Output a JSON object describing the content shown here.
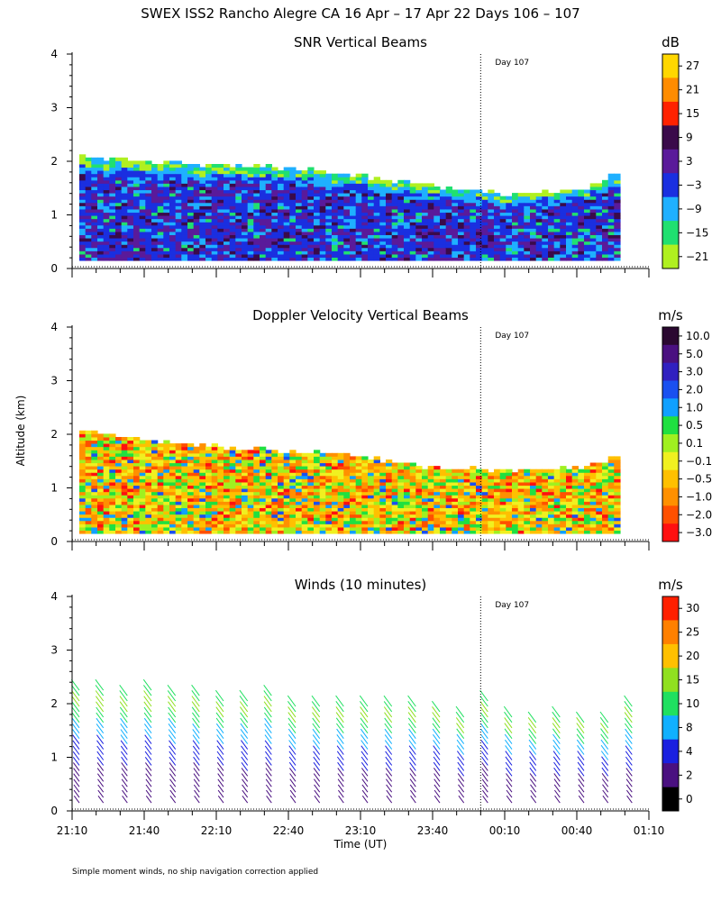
{
  "main_title": "SWEX ISS2 Rancho Alegre CA  16 Apr – 17 Apr 22 Days 106 – 107",
  "ylabel": "Altitude (km)",
  "xlabel": "Time (UT)",
  "footnote": "Simple moment winds, no ship navigation correction applied",
  "day_marker": "Day 107",
  "x_ticks": [
    "21:10",
    "21:40",
    "22:10",
    "22:40",
    "23:10",
    "23:40",
    "00:10",
    "00:40",
    "01:10"
  ],
  "y_ticks": [
    "0",
    "1",
    "2",
    "3",
    "4"
  ],
  "panels": [
    {
      "title": "SNR Vertical Beams",
      "unit": "dB",
      "colorbar": {
        "labels": [
          "27",
          "21",
          "15",
          "9",
          "3",
          "−3",
          "−9",
          "−15",
          "−21"
        ],
        "colors": [
          "#ffd700",
          "#ff8c00",
          "#ff2200",
          "#3a0a4a",
          "#5a1a9a",
          "#1a2fe0",
          "#1fb0ff",
          "#20e070",
          "#b0f020"
        ]
      }
    },
    {
      "title": "Doppler Velocity Vertical Beams",
      "unit": "m/s",
      "colorbar": {
        "labels": [
          "10.0",
          "5.0",
          "3.0",
          "2.0",
          "1.0",
          "0.5",
          "0.1",
          "−0.1",
          "−0.5",
          "−1.0",
          "−2.0",
          "−3.0"
        ],
        "colors": [
          "#2a0830",
          "#4a1080",
          "#3020c0",
          "#1a50f0",
          "#10a0ff",
          "#20e040",
          "#a0f020",
          "#f0f020",
          "#ffc000",
          "#ff9000",
          "#ff5000",
          "#ff1010"
        ]
      }
    },
    {
      "title": "Winds (10 minutes)",
      "unit": "m/s",
      "colorbar": {
        "labels": [
          "30",
          "25",
          "20",
          "15",
          "10",
          "8",
          "4",
          "2",
          "0"
        ],
        "colors": [
          "#ff2000",
          "#ff8000",
          "#ffc000",
          "#90e020",
          "#20e060",
          "#10b0ff",
          "#1a20e0",
          "#4a1080",
          "#000000"
        ]
      }
    }
  ],
  "chart_data": [
    {
      "type": "heatmap",
      "title": "SNR Vertical Beams",
      "ylabel": "Altitude (km)",
      "xlabel": "Time (UT)",
      "ylim": [
        0,
        4
      ],
      "x_range": [
        "21:10",
        "01:10"
      ],
      "colorbar_unit": "dB",
      "colorbar_levels": [
        -21,
        -15,
        -9,
        -3,
        3,
        9,
        15,
        21,
        27
      ],
      "echo_top_km": [
        {
          "time": "21:10",
          "value": 2.1
        },
        {
          "time": "21:40",
          "value": 1.95
        },
        {
          "time": "22:10",
          "value": 1.9
        },
        {
          "time": "22:40",
          "value": 1.85
        },
        {
          "time": "23:10",
          "value": 1.7
        },
        {
          "time": "23:40",
          "value": 1.5
        },
        {
          "time": "00:10",
          "value": 1.35
        },
        {
          "time": "00:40",
          "value": 1.45
        },
        {
          "time": "01:00",
          "value": 1.8
        }
      ],
      "echo_base_km": 0.15,
      "day_marker": {
        "time": "00:00",
        "label": "Day 107"
      }
    },
    {
      "type": "heatmap",
      "title": "Doppler Velocity Vertical Beams",
      "ylabel": "Altitude (km)",
      "xlabel": "Time (UT)",
      "ylim": [
        0,
        4
      ],
      "x_range": [
        "21:10",
        "01:10"
      ],
      "colorbar_unit": "m/s",
      "colorbar_levels": [
        -3.0,
        -2.0,
        -1.0,
        -0.5,
        -0.1,
        0.1,
        0.5,
        1.0,
        2.0,
        3.0,
        5.0,
        10.0
      ],
      "echo_top_km": [
        {
          "time": "21:10",
          "value": 2.1
        },
        {
          "time": "21:40",
          "value": 1.85
        },
        {
          "time": "22:10",
          "value": 1.75
        },
        {
          "time": "22:40",
          "value": 1.65
        },
        {
          "time": "23:10",
          "value": 1.55
        },
        {
          "time": "23:40",
          "value": 1.35
        },
        {
          "time": "00:10",
          "value": 1.3
        },
        {
          "time": "00:40",
          "value": 1.35
        },
        {
          "time": "01:00",
          "value": 1.6
        }
      ],
      "echo_base_km": 0.15,
      "day_marker": {
        "time": "00:00",
        "label": "Day 107"
      }
    },
    {
      "type": "scatter",
      "title": "Winds (10 minutes)",
      "ylabel": "Altitude (km)",
      "xlabel": "Time (UT)",
      "ylim": [
        0,
        4
      ],
      "x_range": [
        "21:10",
        "01:10"
      ],
      "colorbar_unit": "m/s",
      "colorbar_levels": [
        0,
        2,
        4,
        8,
        10,
        15,
        20,
        25,
        30
      ],
      "profile_times": [
        "21:10",
        "21:20",
        "21:30",
        "21:40",
        "21:50",
        "22:00",
        "22:10",
        "22:20",
        "22:30",
        "22:40",
        "22:50",
        "23:00",
        "23:10",
        "23:20",
        "23:30",
        "23:40",
        "23:50",
        "00:00",
        "00:10",
        "00:20",
        "00:30",
        "00:40",
        "00:50",
        "01:00"
      ],
      "profile_top_km": [
        2.35,
        2.3,
        2.25,
        2.3,
        2.25,
        2.2,
        2.15,
        2.1,
        2.25,
        2.0,
        2.05,
        2.0,
        2.0,
        2.05,
        2.0,
        1.95,
        1.8,
        2.15,
        1.8,
        1.75,
        1.8,
        1.75,
        1.7,
        2.0
      ],
      "day_marker": {
        "time": "00:00",
        "label": "Day 107"
      }
    }
  ]
}
